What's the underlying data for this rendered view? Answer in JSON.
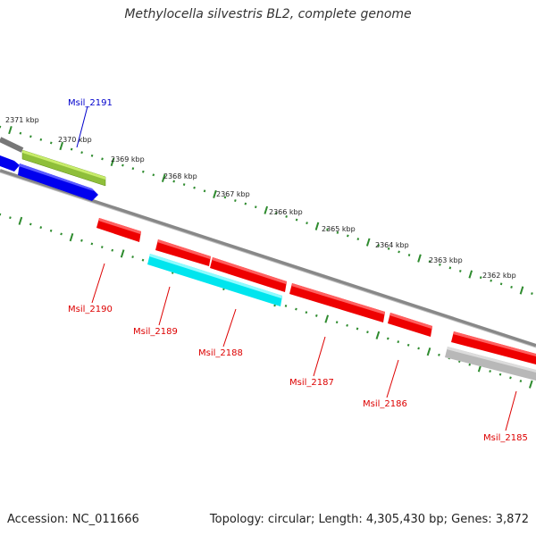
{
  "title": "Methylocella silvestris BL2, complete genome",
  "accession": "Accession: NC_011666",
  "topology": "Topology: circular; Length: 4,305,430 bp; Genes: 3,872",
  "colors": {
    "backbone": "#8a8a8a",
    "tick": "#2e8b2e",
    "gene_red": "#ff0000",
    "gene_blue": "#0000ff",
    "gene_green": "#9acd32",
    "gene_cyan": "#00ffff",
    "gene_gray": "#b0b0b0",
    "label_red": "#dd0000",
    "label_blue": "#0000cc"
  },
  "kbp_labels": [
    "2371 kbp",
    "2370 kbp",
    "2369 kbp",
    "2368 kbp",
    "2367 kbp",
    "2366 kbp",
    "2365 kbp",
    "2364 kbp",
    "2363 kbp",
    "2362 kbp"
  ],
  "genes": [
    {
      "name": "Msil_2191",
      "color": "blue"
    },
    {
      "name": "Msil_2190",
      "color": "red"
    },
    {
      "name": "Msil_2189",
      "color": "red"
    },
    {
      "name": "Msil_2188",
      "color": "red"
    },
    {
      "name": "Msil_2187",
      "color": "red"
    },
    {
      "name": "Msil_2186",
      "color": "red"
    },
    {
      "name": "Msil_2185",
      "color": "red"
    }
  ]
}
